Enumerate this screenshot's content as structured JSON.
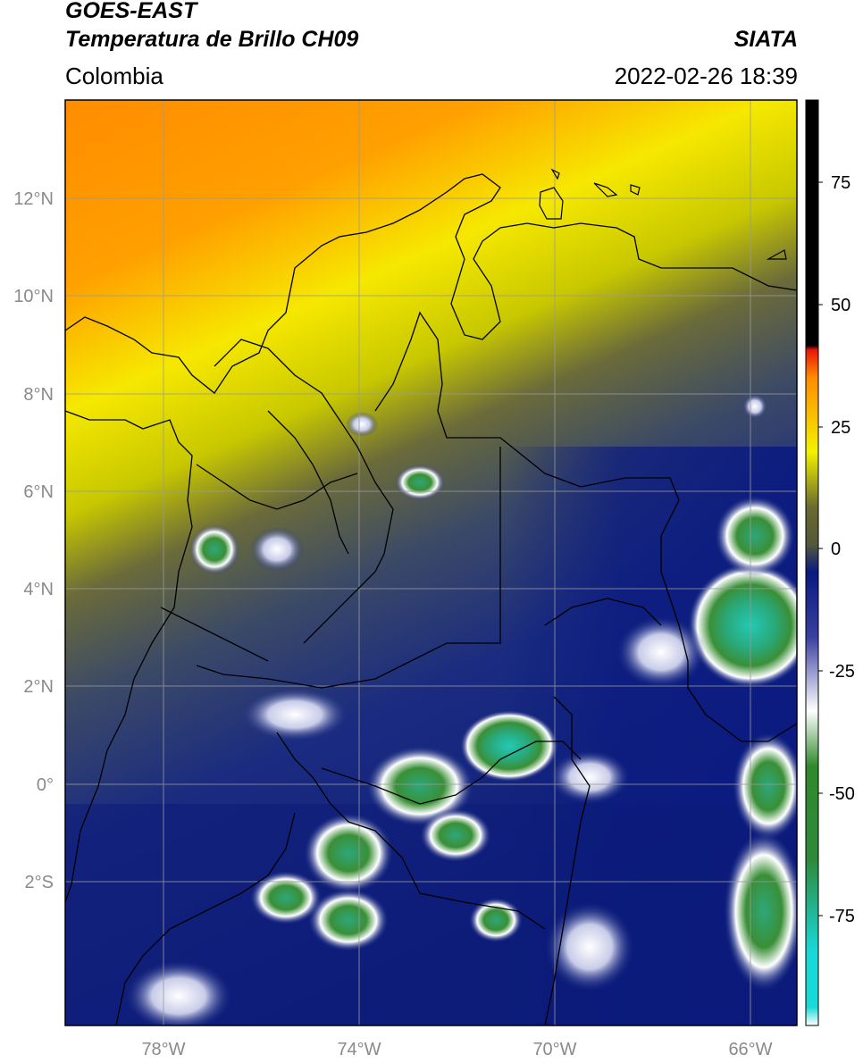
{
  "header": {
    "title_line1": "GOES-EAST",
    "title_line2": "Temperatura de Brillo CH09",
    "brand": "SIATA",
    "region": "Colombia",
    "timestamp": "2022-02-26 18:39"
  },
  "map": {
    "lat_labels": [
      "12°N",
      "10°N",
      "8°N",
      "6°N",
      "4°N",
      "2°N",
      "0°",
      "2°S"
    ],
    "lon_labels": [
      "78°W",
      "74°W",
      "70°W",
      "66°W"
    ],
    "gridline_color": "#9a9a9a",
    "border_color": "#000000"
  },
  "colorbar": {
    "tick_labels": [
      "75",
      "50",
      "25",
      "0",
      "-25",
      "-50",
      "-75"
    ],
    "colors": {
      "top_black": "#000000",
      "red": "#e8160a",
      "orange": "#ff8c00",
      "yellow": "#f2f200",
      "olive": "#54583a",
      "navy": "#0a1a80",
      "white": "#ffffff",
      "green": "#2f8a2c",
      "cyan": "#19d8d8"
    }
  }
}
